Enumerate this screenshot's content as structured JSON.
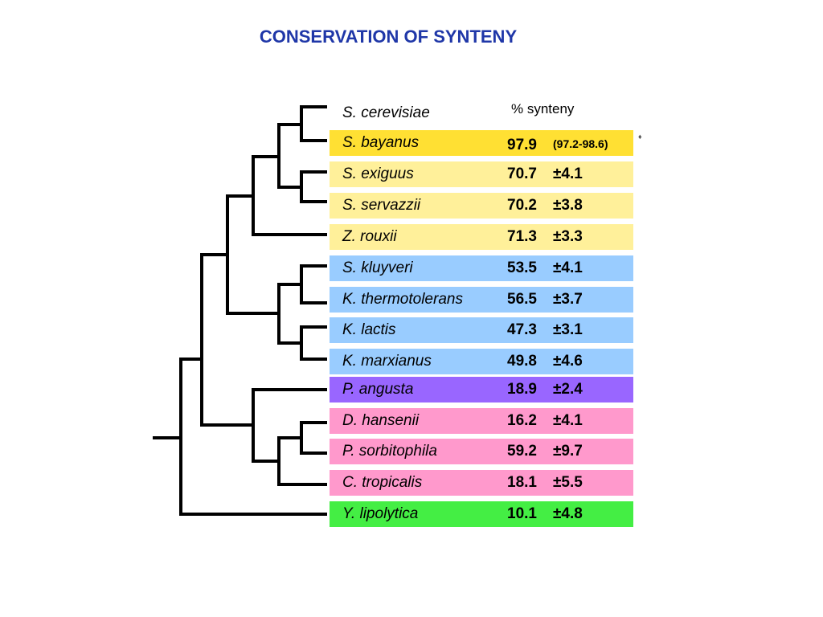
{
  "title": "CONSERVATION OF SYNTENY",
  "column_header": "% synteny",
  "colors": {
    "title": "#1f37a8",
    "yellow_dark": "#ffe033",
    "yellow_light": "#fff09a",
    "blue": "#99ccff",
    "purple": "#9966ff",
    "pink": "#ff99cc",
    "green": "#44ee44"
  },
  "species": [
    {
      "name": "S. cerevisiae",
      "value": "",
      "error": "",
      "color": ""
    },
    {
      "name": "S. bayanus",
      "value": "97.9",
      "error": "(97.2-98.6)",
      "color": "#ffe033"
    },
    {
      "name": "S. exiguus",
      "value": "70.7",
      "error": "±4.1",
      "color": "#fff09a"
    },
    {
      "name": "S. servazzii",
      "value": "70.2",
      "error": "±3.8",
      "color": "#fff09a"
    },
    {
      "name": "Z. rouxii",
      "value": "71.3",
      "error": "±3.3",
      "color": "#fff09a"
    },
    {
      "name": "S. kluyveri",
      "value": "53.5",
      "error": "±4.1",
      "color": "#99ccff"
    },
    {
      "name": "K. thermotolerans",
      "value": "56.5",
      "error": "±3.7",
      "color": "#99ccff"
    },
    {
      "name": "K. lactis",
      "value": "47.3",
      "error": "±3.1",
      "color": "#99ccff"
    },
    {
      "name": "K. marxianus",
      "value": "49.8",
      "error": "±4.6",
      "color": "#99ccff"
    },
    {
      "name": "P. angusta",
      "value": "18.9",
      "error": "±2.4",
      "color": "#9966ff"
    },
    {
      "name": "D. hansenii",
      "value": "16.2",
      "error": "±4.1",
      "color": "#ff99cc"
    },
    {
      "name": "P. sorbitophila",
      "value": "59.2",
      "error": "±9.7",
      "color": "#ff99cc"
    },
    {
      "name": "C. tropicalis",
      "value": "18.1",
      "error": "±5.5",
      "color": "#ff99cc"
    },
    {
      "name": "Y. lipolytica",
      "value": "10.1",
      "error": "±4.8",
      "color": "#44ee44"
    }
  ],
  "tree_topology": "((((((S. cerevisiae,S. bayanus),(S. exiguus,S. servazzii)),Z. rouxii),((S. kluyveri,K. thermotolerans),(K. lactis,K. marxianus))),(P. angusta,((D. hansenii,P. sorbitophila),C. tropicalis))),Y. lipolytica)"
}
